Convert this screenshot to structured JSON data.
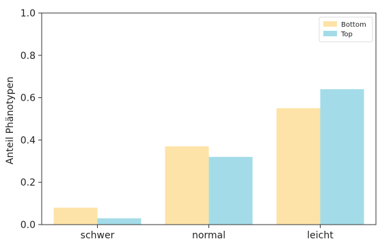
{
  "chart_data": {
    "type": "bar",
    "categories": [
      "schwer",
      "normal",
      "leicht"
    ],
    "series": [
      {
        "name": "Bottom",
        "values": [
          0.08,
          0.37,
          0.55
        ],
        "color": "#fde3a7"
      },
      {
        "name": "Top",
        "values": [
          0.03,
          0.32,
          0.64
        ],
        "color": "#a3dce8"
      }
    ],
    "xlabel": "",
    "ylabel": "Anteil Phänotypen",
    "ylim": [
      0,
      1.0
    ],
    "yticks": [
      "0.0",
      "0.2",
      "0.4",
      "0.6",
      "0.8",
      "1.0"
    ],
    "legend_position": "top-right",
    "grid": false
  }
}
